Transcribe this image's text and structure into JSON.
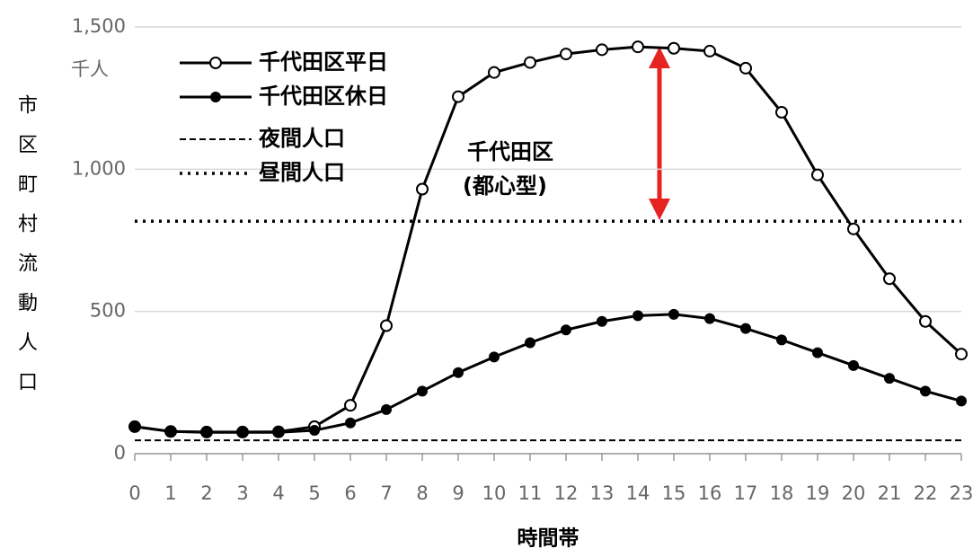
{
  "chart_data": {
    "type": "line",
    "unit_label": "千人",
    "y_label": "市区町村流動人口",
    "x_label": "時間帯",
    "annotation": [
      "千代田区",
      "(都心型)"
    ],
    "x": [
      0,
      1,
      2,
      3,
      4,
      5,
      6,
      7,
      8,
      9,
      10,
      11,
      12,
      13,
      14,
      15,
      16,
      17,
      18,
      19,
      20,
      21,
      22,
      23
    ],
    "xlim": [
      0,
      23
    ],
    "xticks": [
      0,
      1,
      2,
      3,
      4,
      5,
      6,
      7,
      8,
      9,
      10,
      11,
      12,
      13,
      14,
      15,
      16,
      17,
      18,
      19,
      20,
      21,
      22,
      23
    ],
    "ylim": [
      0,
      1500
    ],
    "yticks": [
      0,
      500,
      {
        "value": 1000,
        "label": "1,000"
      },
      {
        "value": 1500,
        "label": "1,500"
      }
    ],
    "grid": true,
    "series": [
      {
        "name": "千代田区平日",
        "color": "#000000",
        "marker": "open",
        "values": [
          95,
          78,
          76,
          76,
          77,
          95,
          170,
          450,
          930,
          1255,
          1340,
          1375,
          1405,
          1420,
          1430,
          1425,
          1415,
          1355,
          1200,
          980,
          790,
          615,
          465,
          350
        ]
      },
      {
        "name": "千代田区休日",
        "color": "#000000",
        "marker": "filled",
        "values": [
          95,
          78,
          75,
          75,
          75,
          82,
          108,
          155,
          220,
          285,
          340,
          390,
          435,
          465,
          485,
          490,
          475,
          440,
          400,
          355,
          310,
          265,
          220,
          185
        ]
      }
    ],
    "lines": [
      {
        "name": "夜間人口",
        "value": 47,
        "style": "dashed"
      },
      {
        "name": "昼間人口",
        "value": 817,
        "style": "dotted"
      }
    ]
  }
}
